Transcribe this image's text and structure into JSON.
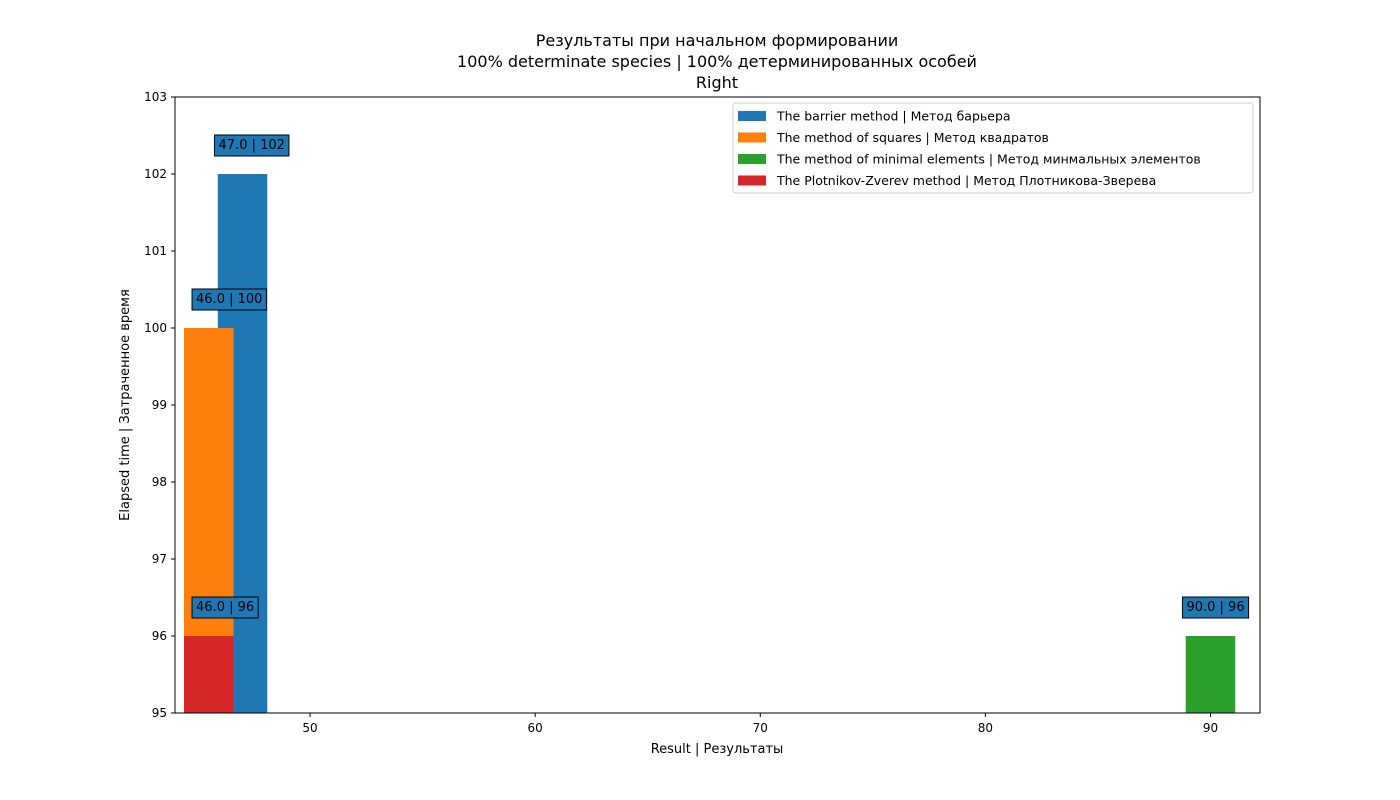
{
  "chart_data": {
    "type": "bar",
    "title_lines": [
      "Результаты при начальном формировании",
      "100% determinate species | 100% детерминированных особей",
      "Right"
    ],
    "xlabel": "Result | Результаты",
    "ylabel": "Elapsed time | Затраченное время",
    "xlim": [
      44,
      92.2
    ],
    "ylim": [
      95,
      103
    ],
    "xticks": [
      50,
      60,
      70,
      80,
      90
    ],
    "yticks": [
      95,
      96,
      97,
      98,
      99,
      100,
      101,
      102,
      103
    ],
    "legend_position": "top-right",
    "series": [
      {
        "name": "The barrier method | Метод барьера",
        "color": "#1f77b4",
        "x": 47.0,
        "y": 102,
        "label": "47.0 | 102"
      },
      {
        "name": "The method of squares | Метод квадратов",
        "color": "#ff7f0e",
        "x": 46.0,
        "y": 100,
        "label": "46.0 | 100"
      },
      {
        "name": "The method of minimal elements | Метод минмальных элементов",
        "color": "#2ca02c",
        "x": 90.0,
        "y": 96,
        "label": "90.0 | 96"
      },
      {
        "name": "The Plotnikov-Zverev method | Метод Плотникова-Зверева",
        "color": "#d62728",
        "x": 46.0,
        "y": 96,
        "label": "46.0 | 96"
      }
    ],
    "annotation_color": "#1f77b4"
  }
}
